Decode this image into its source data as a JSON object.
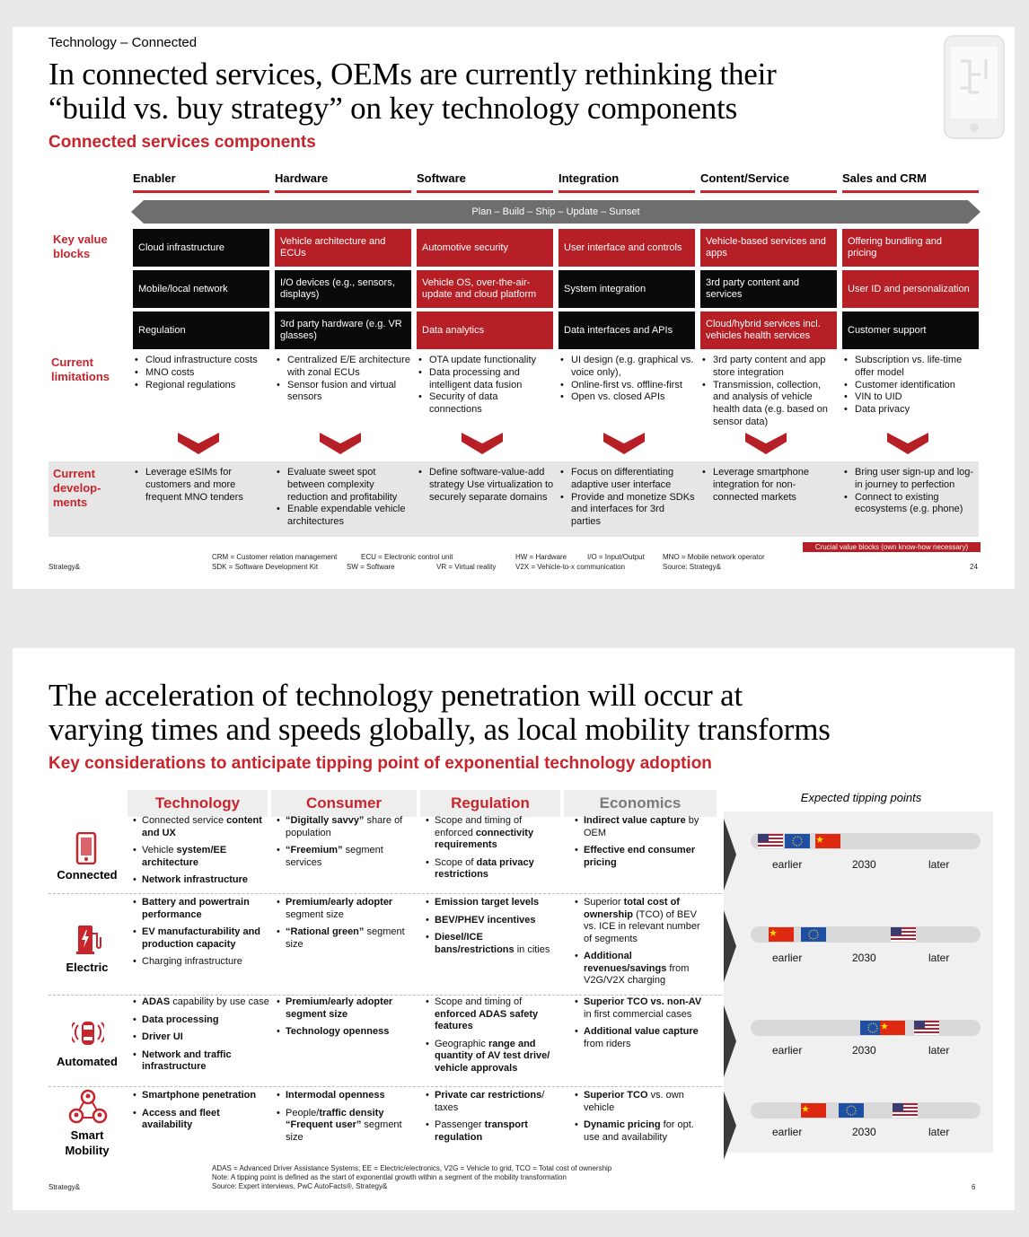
{
  "slide1": {
    "kicker": "Technology – Connected",
    "title_line1": "In connected services, OEMs are currently rethinking their",
    "title_line2": "“build vs. buy strategy” on key technology components",
    "subtitle": "Connected services components",
    "columns": [
      "Enabler",
      "Hardware",
      "Software",
      "Integration",
      "Content/Service",
      "Sales and CRM"
    ],
    "arrow_text": "Plan – Build – Ship – Update – Sunset",
    "row_labels": {
      "key_value_blocks": "Key value blocks",
      "current_limitations": "Current limitations",
      "current_developments": "Current develop-ments"
    },
    "blocks": [
      [
        "Cloud infrastructure",
        "Vehicle architecture and ECUs",
        "Automotive security",
        "User interface and controls",
        "Vehicle-based services and apps",
        "Offering bundling and pricing"
      ],
      [
        "Mobile/local network",
        "I/O devices (e.g., sensors, displays)",
        "Vehicle OS, over-the-air-update and cloud platform",
        "System integration",
        "3rd party content and services",
        "User ID and personalization"
      ],
      [
        "Regulation",
        "3rd party hardware (e.g. VR glasses)",
        "Data analytics",
        "Data interfaces and APIs",
        "Cloud/hybrid services incl. vehicles health services",
        "Customer support"
      ]
    ],
    "limitations": [
      [
        "Cloud infrastructure costs",
        "MNO costs",
        "Regional regulations"
      ],
      [
        "Centralized E/E architecture with zonal ECUs",
        "Sensor fusion and virtual sensors"
      ],
      [
        "OTA update functionality",
        "Data processing and intelligent data fusion",
        "Security of data connections"
      ],
      [
        "UI design (e.g. graphical vs. voice only),",
        "Online-first vs. offline-first",
        "Open vs. closed APIs"
      ],
      [
        "3rd party content and app store integration",
        "Transmission, collection, and analysis of vehicle health data (e.g. based on sensor data)"
      ],
      [
        "Subscription vs. life-time offer model",
        "Customer identification",
        "VIN to UID",
        "Data privacy"
      ]
    ],
    "developments": [
      [
        "Leverage eSIMs for customers and more frequent MNO tenders"
      ],
      [
        "Evaluate sweet spot between complexity reduction and profitability",
        "Enable expendable vehicle architectures"
      ],
      [
        "Define software-value-add strategy Use virtualization to securely separate domains"
      ],
      [
        "Focus on differentiating adaptive user interface",
        "Provide and monetize SDKs and interfaces for 3rd parties"
      ],
      [
        "Leverage smartphone integration for non-connected markets"
      ],
      [
        "Bring user sign-up and log-in journey to perfection",
        "Connect to existing ecosystems (e.g. phone)"
      ]
    ],
    "crucial_badge": "Crucial value blocks (own know-how necessary)",
    "abbrev": [
      "CRM = Customer relation management",
      "SDK = Software Development Kit",
      "ECU = Electronic control unit",
      "SW = Software",
      "VR = Virtual reality",
      "HW = Hardware",
      "V2X = Vehicle-to-x communication",
      "I/O = Input/Output",
      "MNO = Mobile network operator",
      "Source: Strategy&"
    ],
    "brand": "Strategy&",
    "page": "24",
    "colors": {
      "accent": "#c8242b",
      "dark": "#0a0a0a"
    }
  },
  "slide2": {
    "title_line1": "The acceleration of technology penetration will occur at",
    "title_line2": "varying times and speeds globally, as local mobility transforms",
    "subtitle": "Key considerations to anticipate tipping point of exponential technology adoption",
    "headers": [
      "Technology",
      "Consumer",
      "Regulation",
      "Economics"
    ],
    "tipping_header": "Expected tipping points",
    "axis": {
      "earlier": "earlier",
      "mid": "2030",
      "later": "later"
    },
    "rows": [
      {
        "label": "Connected",
        "icon": "smartphone-icon",
        "technology": [
          "Connected service content and UX",
          "Vehicle system/EE architecture",
          "Network infrastructure"
        ],
        "consumer": [
          "“Digitally savvy” share of population",
          "“Freemium” segment services"
        ],
        "regulation": [
          "Scope and timing of enforced connectivity requirements",
          "Scope of data privacy restrictions"
        ],
        "economics": [
          "Indirect value capture by OEM",
          "Effective end consumer pricing"
        ],
        "flags": [
          "us",
          "eu",
          "cn"
        ]
      },
      {
        "label": "Electric",
        "icon": "charging-station-icon",
        "technology": [
          "Battery and powertrain performance",
          "EV manufacturability and production capacity",
          "Charging infrastructure"
        ],
        "consumer": [
          "Premium/early adopter segment size",
          "“Rational green” segment size"
        ],
        "regulation": [
          "Emission target levels",
          "BEV/PHEV incentives",
          "Diesel/ICE bans/restrictions in cities"
        ],
        "economics": [
          "Superior total cost of ownership (TCO) of BEV vs. ICE in relevant number of segments",
          "Additional revenues/savings from V2G/V2X charging"
        ],
        "flags": [
          "cn",
          "eu",
          "us"
        ]
      },
      {
        "label": "Automated",
        "icon": "car-sensor-icon",
        "technology": [
          "ADAS capability by use case",
          "Data processing",
          "Driver UI",
          "Network and traffic infrastructure"
        ],
        "consumer": [
          "Premium/early adopter segment size",
          "Technology openness"
        ],
        "regulation": [
          "Scope and timing of enforced ADAS safety features",
          "Geographic range and quantity of AV test drive/ vehicle approvals"
        ],
        "economics": [
          "Superior TCO vs. non-AV in first commercial cases",
          "Additional value capture from riders"
        ],
        "flags": [
          "eu",
          "cn",
          "us"
        ]
      },
      {
        "label": "Smart Mobility",
        "icon": "people-network-icon",
        "technology": [
          "Smartphone penetration",
          "Access and fleet availability"
        ],
        "consumer": [
          "Intermodal openness",
          "People/traffic density “Frequent user” segment size"
        ],
        "regulation": [
          "Private car restrictions/ taxes",
          "Passenger transport regulation"
        ],
        "economics": [
          "Superior TCO vs. own vehicle",
          "Dynamic pricing for opt. use and availability"
        ],
        "flags": [
          "cn",
          "eu",
          "us"
        ]
      }
    ],
    "footnote1": "ADAS = Advanced Driver Assistance Systems; EE = Electric/electronics, V2G = Vehicle to grid, TCO = Total cost of ownership",
    "footnote2": "Note: A tipping point is defined as the start of exponential growth within a segment of the mobility transformation",
    "footnote3": "Source: Expert interviews, PwC AutoFacts®, Strategy&",
    "brand": "Strategy&",
    "page": "6",
    "colors": {
      "accent": "#c8242b"
    }
  }
}
